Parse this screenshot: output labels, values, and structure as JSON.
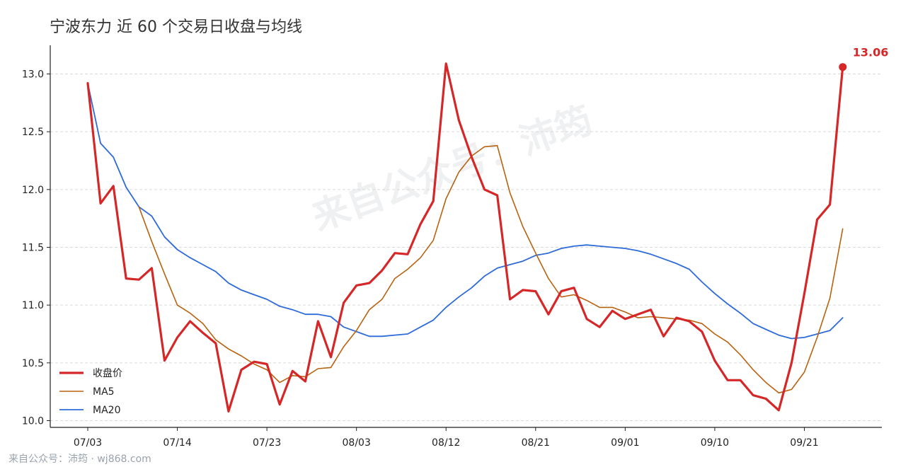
{
  "title": "宁波东力 近 60 个交易日收盘与均线",
  "watermark": "来自公众号：沛筠",
  "footer": "来自公众号：沛筠 · wj868.com",
  "chart_data": {
    "type": "line",
    "title": "宁波东力 近 60 个交易日收盘与均线",
    "xlabel": "",
    "ylabel": "",
    "ylim": [
      9.97,
      13.25
    ],
    "yticks": [
      10.0,
      10.5,
      11.0,
      11.5,
      12.0,
      12.5,
      13.0
    ],
    "grid": true,
    "legend_position": "lower-left",
    "x_tick_labels": [
      {
        "label": "07/03",
        "index": 0
      },
      {
        "label": "07/14",
        "index": 7
      },
      {
        "label": "07/23",
        "index": 14
      },
      {
        "label": "08/03",
        "index": 21
      },
      {
        "label": "08/12",
        "index": 28
      },
      {
        "label": "08/21",
        "index": 35
      },
      {
        "label": "09/01",
        "index": 42
      },
      {
        "label": "09/10",
        "index": 49
      },
      {
        "label": "09/21",
        "index": 56
      }
    ],
    "last_value_label": "13.06",
    "series": [
      {
        "name": "收盘价",
        "color": "#d62728",
        "values": [
          12.92,
          11.88,
          12.03,
          11.23,
          11.22,
          11.32,
          10.52,
          10.72,
          10.86,
          10.76,
          10.67,
          10.08,
          10.44,
          10.51,
          10.49,
          10.14,
          10.43,
          10.34,
          10.86,
          10.55,
          11.02,
          11.17,
          11.19,
          11.3,
          11.45,
          11.44,
          11.7,
          11.9,
          13.09,
          12.6,
          12.28,
          12.0,
          11.95,
          11.05,
          11.13,
          11.12,
          10.92,
          11.12,
          11.15,
          10.88,
          10.81,
          10.95,
          10.88,
          10.92,
          10.96,
          10.73,
          10.89,
          10.86,
          10.77,
          10.52,
          10.35,
          10.35,
          10.22,
          10.19,
          10.09,
          10.5,
          11.1,
          11.74,
          11.87,
          13.06
        ]
      },
      {
        "name": "MA5",
        "color": "#b8620f",
        "values": [
          null,
          null,
          null,
          null,
          11.85,
          11.55,
          11.27,
          11.0,
          10.93,
          10.84,
          10.7,
          10.62,
          10.56,
          10.49,
          10.44,
          10.33,
          10.39,
          10.38,
          10.45,
          10.46,
          10.64,
          10.78,
          10.96,
          11.05,
          11.23,
          11.31,
          11.41,
          11.56,
          11.92,
          12.15,
          12.29,
          12.37,
          12.38,
          11.97,
          11.68,
          11.45,
          11.23,
          11.07,
          11.09,
          11.04,
          10.98,
          10.98,
          10.94,
          10.89,
          10.9,
          10.89,
          10.88,
          10.87,
          10.84,
          10.75,
          10.68,
          10.57,
          10.44,
          10.33,
          10.24,
          10.27,
          10.42,
          10.72,
          11.06,
          11.66
        ]
      },
      {
        "name": "MA20",
        "color": "#2e6bd9",
        "values": [
          12.92,
          12.4,
          12.28,
          12.02,
          11.85,
          11.77,
          11.59,
          11.48,
          11.41,
          11.35,
          11.29,
          11.19,
          11.13,
          11.09,
          11.05,
          10.99,
          10.96,
          10.92,
          10.92,
          10.9,
          10.81,
          10.77,
          10.73,
          10.73,
          10.74,
          10.75,
          10.81,
          10.87,
          10.98,
          11.07,
          11.15,
          11.25,
          11.32,
          11.35,
          11.38,
          11.43,
          11.45,
          11.49,
          11.51,
          11.52,
          11.51,
          11.5,
          11.49,
          11.47,
          11.44,
          11.4,
          11.36,
          11.31,
          11.2,
          11.1,
          11.01,
          10.93,
          10.84,
          10.79,
          10.74,
          10.71,
          10.72,
          10.75,
          10.78,
          10.89
        ]
      }
    ]
  }
}
